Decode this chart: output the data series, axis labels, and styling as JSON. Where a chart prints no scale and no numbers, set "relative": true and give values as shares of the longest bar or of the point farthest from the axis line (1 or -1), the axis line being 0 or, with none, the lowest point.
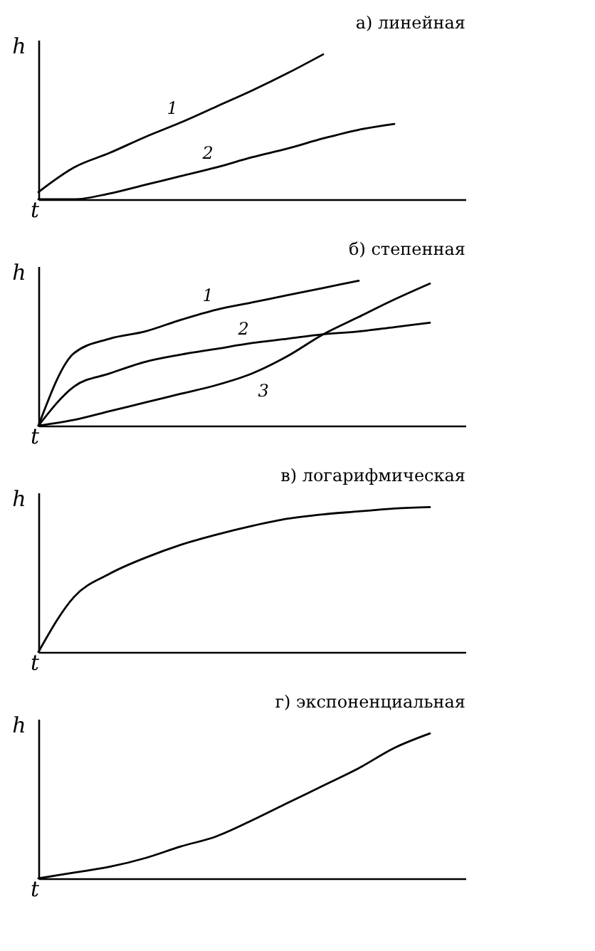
{
  "chart_data": [
    {
      "type": "line",
      "title": "а) линейная",
      "xlabel": "t",
      "ylabel": "h",
      "relative": true,
      "line_style": "solid",
      "categories": [
        null,
        null,
        null,
        null,
        null,
        null,
        null,
        null,
        null,
        null,
        null,
        null,
        null
      ],
      "series": [
        {
          "name": "1",
          "color": "#000000",
          "values": [
            0.05,
            0.22,
            0.32,
            0.43,
            0.53,
            0.64,
            0.75,
            0.87,
            1.0,
            null,
            null,
            null,
            null
          ]
        },
        {
          "name": "2",
          "color": "#000000",
          "values": [
            0,
            0,
            0.04,
            0.1,
            0.16,
            0.22,
            0.29,
            0.35,
            0.42,
            0.48,
            0.52,
            null,
            null
          ]
        }
      ]
    },
    {
      "type": "line",
      "title": "б) степенная",
      "xlabel": "t",
      "ylabel": "h",
      "relative": true,
      "line_style": "solid",
      "categories": [
        null,
        null,
        null,
        null,
        null,
        null,
        null,
        null,
        null,
        null,
        null,
        null,
        null
      ],
      "series": [
        {
          "name": "1",
          "color": "#000000",
          "values": [
            0,
            0.5,
            0.6,
            0.65,
            0.73,
            0.8,
            0.85,
            0.9,
            0.95,
            1.0,
            null,
            null,
            null
          ]
        },
        {
          "name": "2",
          "color": "#000000",
          "values": [
            0,
            0.27,
            0.36,
            0.44,
            0.49,
            0.53,
            0.57,
            0.6,
            0.63,
            0.65,
            0.68,
            0.71,
            null
          ]
        },
        {
          "name": "3",
          "color": "#000000",
          "values": [
            0,
            0.04,
            0.1,
            0.16,
            0.22,
            0.28,
            0.36,
            0.48,
            0.63,
            0.75,
            0.87,
            0.98,
            null
          ]
        }
      ]
    },
    {
      "type": "line",
      "title": "в) логарифмическая",
      "xlabel": "t",
      "ylabel": "h",
      "relative": true,
      "line_style": "solid",
      "categories": [
        null,
        null,
        null,
        null,
        null,
        null,
        null,
        null,
        null,
        null,
        null,
        null,
        null
      ],
      "series": [
        {
          "color": "#000000",
          "values": [
            0,
            0.38,
            0.54,
            0.65,
            0.74,
            0.81,
            0.87,
            0.92,
            0.95,
            0.97,
            0.99,
            1.0,
            null
          ]
        }
      ]
    },
    {
      "type": "line",
      "title": "г) экспоненциальная",
      "xlabel": "t",
      "ylabel": "h",
      "relative": true,
      "line_style": "solid",
      "categories": [
        null,
        null,
        null,
        null,
        null,
        null,
        null,
        null,
        null,
        null,
        null,
        null,
        null
      ],
      "series": [
        {
          "color": "#000000",
          "values": [
            0,
            0.04,
            0.08,
            0.14,
            0.22,
            0.29,
            0.4,
            0.52,
            0.64,
            0.76,
            0.9,
            1.0,
            null
          ]
        }
      ]
    }
  ]
}
